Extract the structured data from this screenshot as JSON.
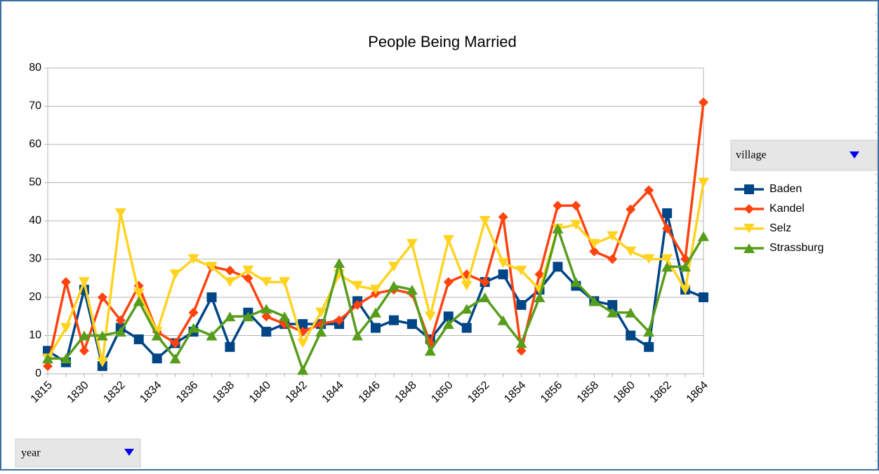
{
  "chart_data": {
    "type": "line",
    "title": "People Being Married",
    "categories": [
      "1815",
      null,
      "1830",
      null,
      "1832",
      null,
      "1834",
      null,
      "1836",
      null,
      "1838",
      null,
      "1840",
      null,
      "1842",
      null,
      "1844",
      null,
      "1846",
      null,
      "1848",
      null,
      "1850",
      null,
      "1852",
      null,
      "1854",
      null,
      "1856",
      null,
      "1858",
      null,
      "1860",
      null,
      "1862",
      null,
      "1864"
    ],
    "series": [
      {
        "name": "Baden",
        "color": "#004586",
        "marker": "square",
        "values": [
          6,
          3,
          22,
          2,
          12,
          9,
          4,
          8,
          11,
          20,
          7,
          16,
          11,
          13,
          13,
          13,
          13,
          19,
          12,
          14,
          13,
          9,
          15,
          12,
          24,
          26,
          18,
          22,
          28,
          23,
          19,
          18,
          10,
          7,
          42,
          22,
          20
        ]
      },
      {
        "name": "Kandel",
        "color": "#ff420e",
        "marker": "diamond",
        "values": [
          2,
          24,
          6,
          20,
          14,
          23,
          11,
          8,
          16,
          28,
          27,
          25,
          15,
          13,
          11,
          13,
          14,
          18,
          21,
          22,
          21,
          8,
          24,
          26,
          24,
          41,
          6,
          26,
          44,
          44,
          32,
          30,
          43,
          48,
          38,
          30,
          71
        ]
      },
      {
        "name": "Selz",
        "color": "#ffd320",
        "marker": "triangle-down",
        "values": [
          4,
          12,
          24,
          3,
          42,
          21,
          11,
          26,
          30,
          28,
          24,
          27,
          24,
          24,
          8,
          16,
          26,
          23,
          22,
          28,
          34,
          15,
          35,
          23,
          40,
          29,
          27,
          22,
          38,
          39,
          34,
          36,
          32,
          30,
          30,
          22,
          50
        ]
      },
      {
        "name": "Strassburg",
        "color": "#579d1c",
        "marker": "triangle-up",
        "values": [
          4,
          4,
          10,
          10,
          11,
          19,
          10,
          4,
          12,
          10,
          15,
          15,
          17,
          15,
          1,
          11,
          29,
          10,
          16,
          23,
          22,
          6,
          13,
          17,
          20,
          14,
          8,
          20,
          38,
          24,
          19,
          16,
          16,
          11,
          28,
          28,
          36
        ]
      }
    ],
    "ylim": [
      0,
      80
    ],
    "yticks": [
      0,
      10,
      20,
      30,
      40,
      50,
      60,
      70,
      80
    ],
    "grid": true
  },
  "pivot": {
    "column_field": "village",
    "row_field": "year"
  }
}
